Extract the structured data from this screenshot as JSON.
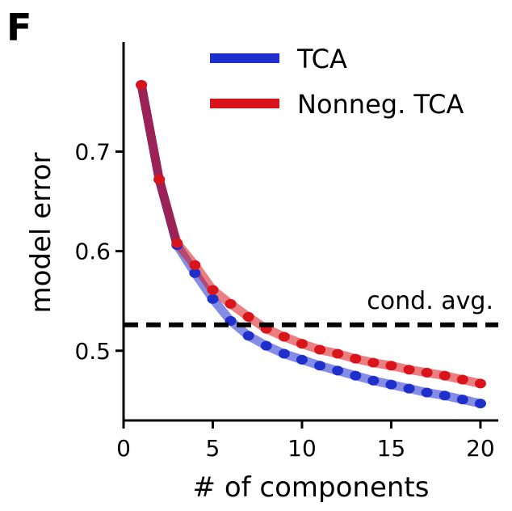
{
  "panel_label": "F",
  "chart_data": {
    "type": "line",
    "xlabel": "# of components",
    "ylabel": "model error",
    "xlim": [
      0,
      21
    ],
    "ylim": [
      0.43,
      0.81
    ],
    "xticks": [
      0,
      5,
      10,
      15,
      20
    ],
    "yticks": [
      0.5,
      0.6,
      0.7
    ],
    "xtick_labels": [
      "0",
      "5",
      "10",
      "15",
      "20"
    ],
    "ytick_labels": [
      "0.5",
      "0.6",
      "0.7"
    ],
    "x": [
      1,
      2,
      3,
      4,
      5,
      6,
      7,
      8,
      9,
      10,
      11,
      12,
      13,
      14,
      15,
      16,
      17,
      18,
      19,
      20
    ],
    "series": [
      {
        "name": "TCA",
        "color": "#1f2fcc",
        "values": [
          0.767,
          0.672,
          0.606,
          0.578,
          0.552,
          0.53,
          0.515,
          0.505,
          0.497,
          0.491,
          0.485,
          0.48,
          0.475,
          0.47,
          0.466,
          0.462,
          0.458,
          0.455,
          0.451,
          0.447
        ]
      },
      {
        "name": "Nonneg. TCA",
        "color": "#d9141a",
        "values": [
          0.767,
          0.672,
          0.608,
          0.586,
          0.561,
          0.547,
          0.534,
          0.522,
          0.514,
          0.507,
          0.501,
          0.497,
          0.492,
          0.488,
          0.485,
          0.481,
          0.478,
          0.475,
          0.471,
          0.467
        ]
      }
    ],
    "reference_line": {
      "label": "cond. avg.",
      "value": 0.526,
      "color": "#000000",
      "style": "dashed"
    },
    "legend": {
      "placement": "top-right"
    },
    "grid": false
  }
}
